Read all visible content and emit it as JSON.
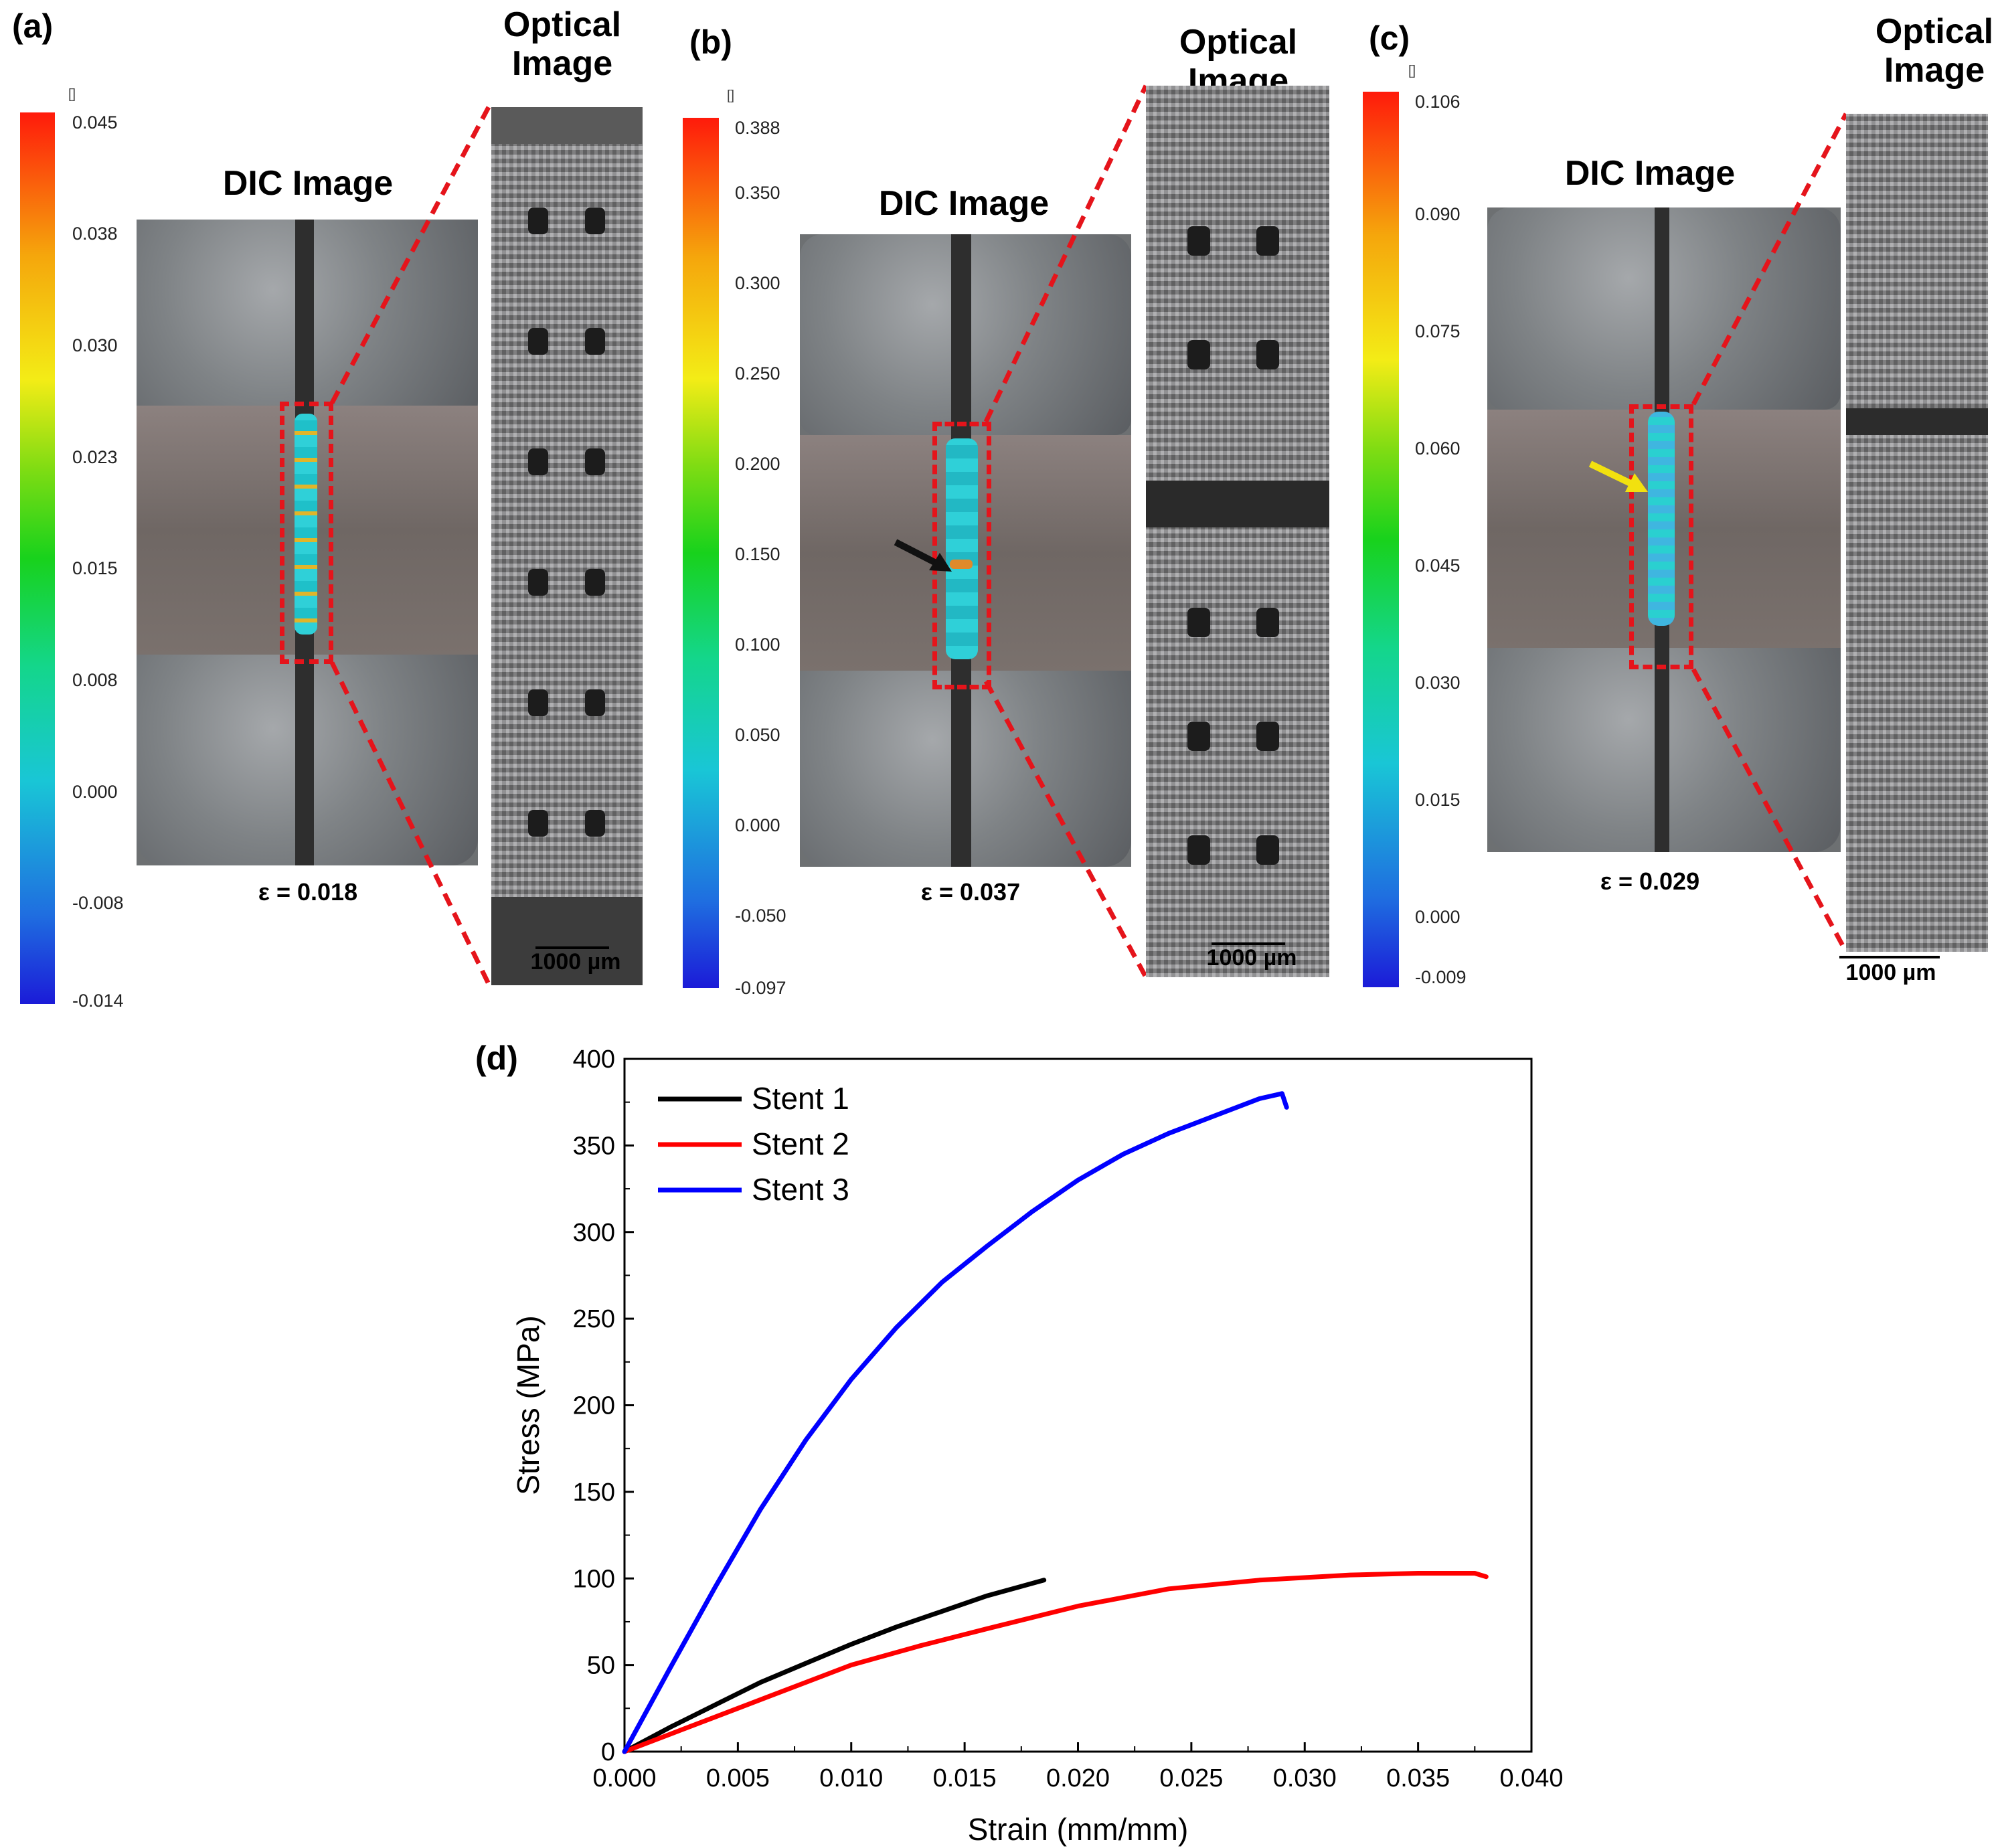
{
  "panels": [
    {
      "label": "(a)",
      "dic_title": "DIC Image",
      "optical_title_line1": "Optical",
      "optical_title_line2": "Image",
      "colorbar_unit": "[]",
      "colorbar_ticks": [
        "0.045",
        "0.038",
        "0.030",
        "0.023",
        "0.015",
        "0.008",
        "0.000",
        "-0.008",
        "-0.014"
      ],
      "strain_label": "ε = 0.018",
      "scale_label": "1000 µm",
      "arrow_color": "none"
    },
    {
      "label": "(b)",
      "dic_title": "DIC Image",
      "optical_title_line1": "Optical",
      "optical_title_line2": "Image",
      "colorbar_unit": "[]",
      "colorbar_ticks": [
        "0.388",
        "0.350",
        "0.300",
        "0.250",
        "0.200",
        "0.150",
        "0.100",
        "0.050",
        "0.000",
        "-0.050",
        "-0.097"
      ],
      "strain_label": "ε = 0.037",
      "scale_label": "1000 µm",
      "arrow_color": "#111111"
    },
    {
      "label": "(c)",
      "dic_title": "DIC Image",
      "optical_title_line1": "Optical",
      "optical_title_line2": "Image",
      "colorbar_unit": "[]",
      "colorbar_ticks": [
        "0.106",
        "0.090",
        "0.075",
        "0.060",
        "0.045",
        "0.030",
        "0.015",
        "0.000",
        "-0.009"
      ],
      "strain_label": "ε = 0.029",
      "scale_label": "1000 µm",
      "arrow_color": "#f2e10f"
    }
  ],
  "chart_label": "(d)",
  "chart_data": {
    "type": "line",
    "title": "",
    "xlabel": "Strain (mm/mm)",
    "ylabel": "Stress (MPa)",
    "xlim": [
      0,
      0.04
    ],
    "ylim": [
      0,
      400
    ],
    "xticks": [
      "0.000",
      "0.005",
      "0.010",
      "0.015",
      "0.020",
      "0.025",
      "0.030",
      "0.035",
      "0.040"
    ],
    "yticks": [
      "0",
      "50",
      "100",
      "150",
      "200",
      "250",
      "300",
      "350",
      "400"
    ],
    "grid": false,
    "legend_position": "top-left",
    "series": [
      {
        "name": "Stent 1",
        "color": "#000000",
        "x": [
          0,
          0.002,
          0.004,
          0.006,
          0.008,
          0.01,
          0.012,
          0.014,
          0.016,
          0.0185
        ],
        "y": [
          0,
          14,
          27,
          40,
          51,
          62,
          72,
          81,
          90,
          99
        ]
      },
      {
        "name": "Stent 2",
        "color": "#ff0000",
        "x": [
          0,
          0.002,
          0.005,
          0.008,
          0.01,
          0.013,
          0.016,
          0.02,
          0.024,
          0.028,
          0.032,
          0.035,
          0.0375,
          0.038
        ],
        "y": [
          0,
          10,
          25,
          40,
          50,
          61,
          71,
          84,
          94,
          99,
          102,
          103,
          103,
          101
        ]
      },
      {
        "name": "Stent 3",
        "color": "#0000ff",
        "x": [
          0,
          0.002,
          0.004,
          0.006,
          0.008,
          0.01,
          0.012,
          0.014,
          0.016,
          0.018,
          0.02,
          0.022,
          0.024,
          0.026,
          0.028,
          0.029,
          0.0292
        ],
        "y": [
          0,
          48,
          95,
          140,
          180,
          215,
          245,
          271,
          292,
          312,
          330,
          345,
          357,
          367,
          377,
          380,
          372
        ]
      }
    ]
  }
}
